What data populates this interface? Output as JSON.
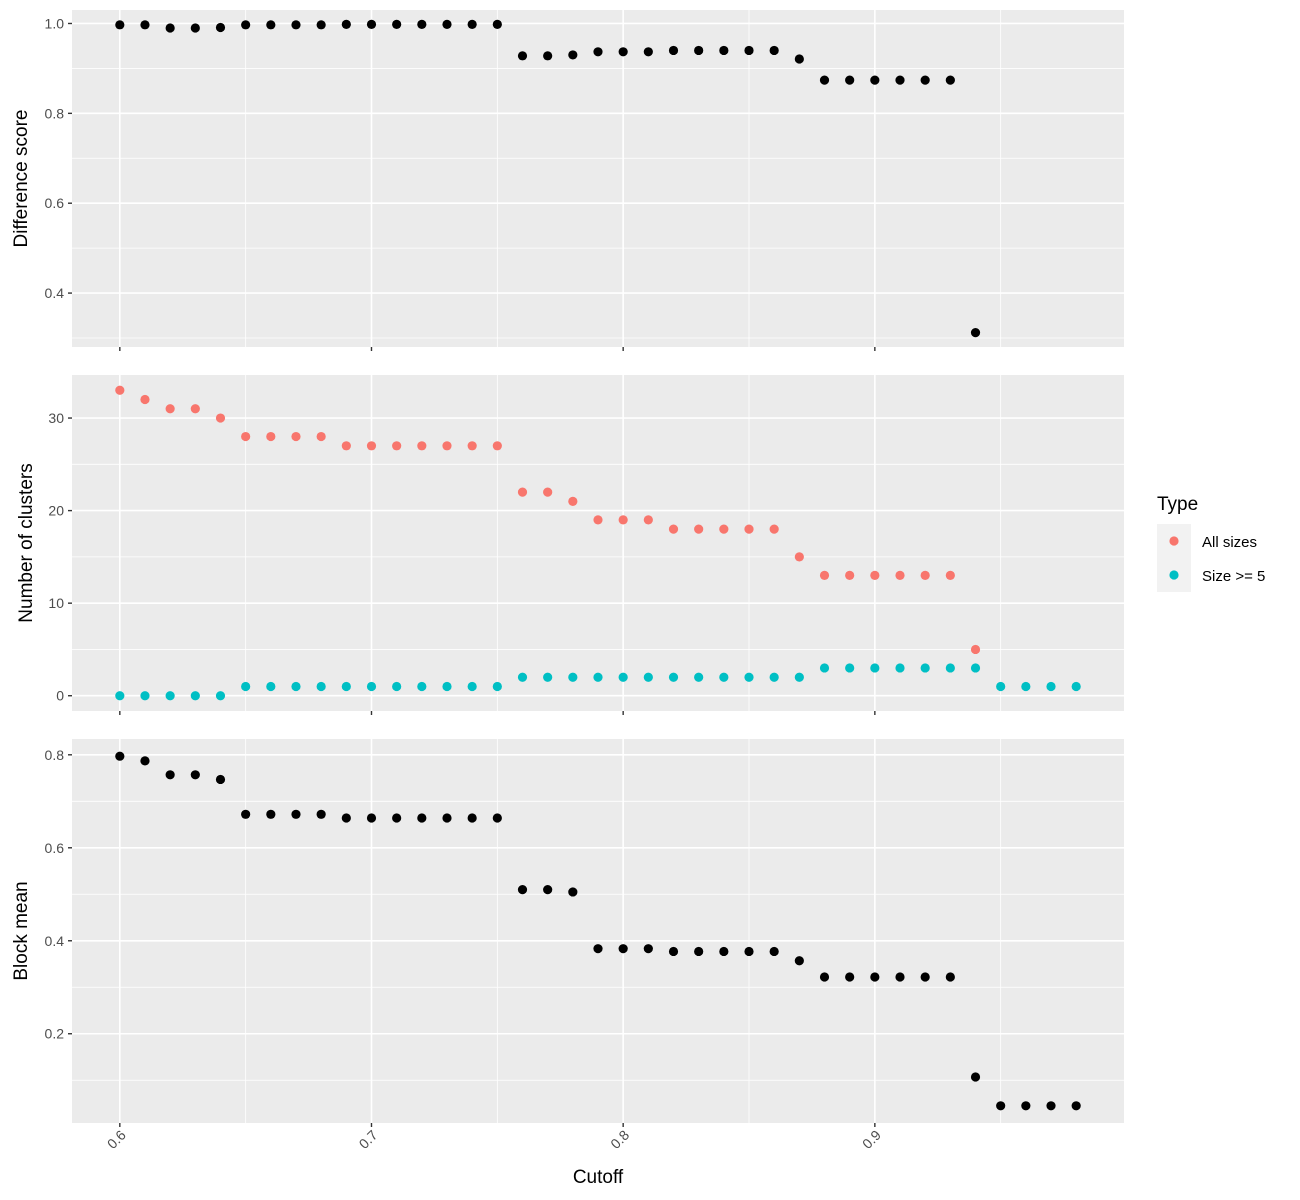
{
  "chart_data": [
    {
      "type": "scatter",
      "ylabel": "Difference score",
      "ylim": [
        0.28,
        1.03
      ],
      "yticks": [
        0.4,
        0.6,
        0.8,
        1.0
      ],
      "ytick_labels": [
        "0.4",
        "0.6",
        "0.8",
        "1.0"
      ],
      "xlim": [
        0.581,
        0.999
      ],
      "series": [
        {
          "color": "#000000",
          "x": [
            0.6,
            0.61,
            0.62,
            0.63,
            0.64,
            0.65,
            0.66,
            0.67,
            0.68,
            0.69,
            0.7,
            0.71,
            0.72,
            0.73,
            0.74,
            0.75,
            0.76,
            0.77,
            0.78,
            0.79,
            0.8,
            0.81,
            0.82,
            0.83,
            0.84,
            0.85,
            0.86,
            0.87,
            0.88,
            0.89,
            0.9,
            0.91,
            0.92,
            0.93,
            0.94
          ],
          "y": [
            0.997,
            0.997,
            0.99,
            0.99,
            0.991,
            0.997,
            0.997,
            0.997,
            0.997,
            0.998,
            0.998,
            0.998,
            0.998,
            0.998,
            0.998,
            0.998,
            0.928,
            0.928,
            0.93,
            0.937,
            0.937,
            0.937,
            0.94,
            0.94,
            0.94,
            0.94,
            0.94,
            0.921,
            0.874,
            0.874,
            0.874,
            0.874,
            0.874,
            0.874,
            0.312
          ]
        }
      ]
    },
    {
      "type": "scatter",
      "ylabel": "Number of clusters",
      "ylim": [
        -1.65,
        34.65
      ],
      "yticks": [
        0,
        10,
        20,
        30
      ],
      "ytick_labels": [
        "0",
        "10",
        "20",
        "30"
      ],
      "xlim": [
        0.581,
        0.999
      ],
      "series": [
        {
          "name": "All sizes",
          "color": "#F8766D",
          "x": [
            0.6,
            0.61,
            0.62,
            0.63,
            0.64,
            0.65,
            0.66,
            0.67,
            0.68,
            0.69,
            0.7,
            0.71,
            0.72,
            0.73,
            0.74,
            0.75,
            0.76,
            0.77,
            0.78,
            0.79,
            0.8,
            0.81,
            0.82,
            0.83,
            0.84,
            0.85,
            0.86,
            0.87,
            0.88,
            0.89,
            0.9,
            0.91,
            0.92,
            0.93,
            0.94
          ],
          "y": [
            33,
            32,
            31,
            31,
            30,
            28,
            28,
            28,
            28,
            27,
            27,
            27,
            27,
            27,
            27,
            27,
            22,
            22,
            21,
            19,
            19,
            19,
            18,
            18,
            18,
            18,
            18,
            15,
            13,
            13,
            13,
            13,
            13,
            13,
            5
          ]
        },
        {
          "name": "Size >= 5",
          "color": "#00BFC4",
          "x": [
            0.6,
            0.61,
            0.62,
            0.63,
            0.64,
            0.65,
            0.66,
            0.67,
            0.68,
            0.69,
            0.7,
            0.71,
            0.72,
            0.73,
            0.74,
            0.75,
            0.76,
            0.77,
            0.78,
            0.79,
            0.8,
            0.81,
            0.82,
            0.83,
            0.84,
            0.85,
            0.86,
            0.87,
            0.88,
            0.89,
            0.9,
            0.91,
            0.92,
            0.93,
            0.94,
            0.95,
            0.96,
            0.97,
            0.98
          ],
          "y": [
            0,
            0,
            0,
            0,
            0,
            1,
            1,
            1,
            1,
            1,
            1,
            1,
            1,
            1,
            1,
            1,
            2,
            2,
            2,
            2,
            2,
            2,
            2,
            2,
            2,
            2,
            2,
            2,
            3,
            3,
            3,
            3,
            3,
            3,
            3,
            1,
            1,
            1,
            1
          ]
        }
      ]
    },
    {
      "type": "scatter",
      "ylabel": "Block mean",
      "xlabel": "Cutoff",
      "ylim": [
        0.008,
        0.834
      ],
      "yticks": [
        0.2,
        0.4,
        0.6,
        0.8
      ],
      "ytick_labels": [
        "0.2",
        "0.4",
        "0.6",
        "0.8"
      ],
      "xlim": [
        0.581,
        0.999
      ],
      "xticks": [
        0.6,
        0.7,
        0.8,
        0.9
      ],
      "xtick_labels": [
        "0.6",
        "0.7",
        "0.8",
        "0.9"
      ],
      "series": [
        {
          "color": "#000000",
          "x": [
            0.6,
            0.61,
            0.62,
            0.63,
            0.64,
            0.65,
            0.66,
            0.67,
            0.68,
            0.69,
            0.7,
            0.71,
            0.72,
            0.73,
            0.74,
            0.75,
            0.76,
            0.77,
            0.78,
            0.79,
            0.8,
            0.81,
            0.82,
            0.83,
            0.84,
            0.85,
            0.86,
            0.87,
            0.88,
            0.89,
            0.9,
            0.91,
            0.92,
            0.93,
            0.94,
            0.95,
            0.96,
            0.97,
            0.98
          ],
          "y": [
            0.797,
            0.787,
            0.757,
            0.757,
            0.747,
            0.672,
            0.672,
            0.672,
            0.672,
            0.664,
            0.664,
            0.664,
            0.664,
            0.664,
            0.664,
            0.664,
            0.51,
            0.51,
            0.505,
            0.383,
            0.383,
            0.383,
            0.377,
            0.377,
            0.377,
            0.377,
            0.377,
            0.357,
            0.322,
            0.322,
            0.322,
            0.322,
            0.322,
            0.322,
            0.107,
            0.045,
            0.045,
            0.045,
            0.045
          ]
        }
      ]
    }
  ],
  "legend": {
    "title": "Type",
    "placement": "right",
    "items": [
      {
        "label": "All sizes",
        "color": "#F8766D"
      },
      {
        "label": "Size >= 5",
        "color": "#00BFC4"
      }
    ]
  }
}
